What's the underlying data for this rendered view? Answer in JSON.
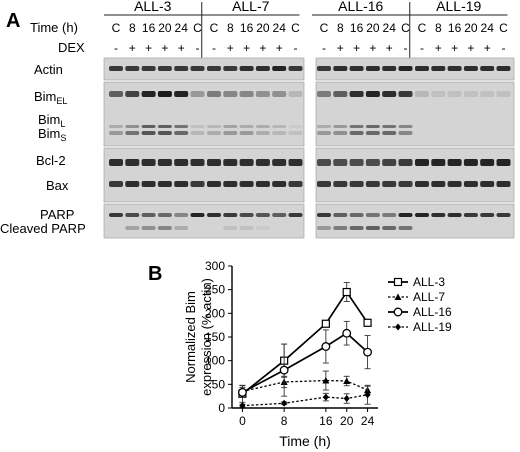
{
  "panel_a": {
    "letter": "A",
    "time_label": "Time (h)",
    "dex_label": "DEX",
    "groups_left": [
      "ALL-3",
      "ALL-7"
    ],
    "groups_right": [
      "ALL-16",
      "ALL-19"
    ],
    "time_points": [
      "C",
      "8",
      "16",
      "20",
      "24",
      "C"
    ],
    "dex_marks": [
      "-",
      "+",
      "+",
      "+",
      "+",
      "-"
    ],
    "row_labels": {
      "actin": "Actin",
      "bim_el_base": "Bim",
      "bim_el_sub": "EL",
      "bim_l_base": "Bim",
      "bim_l_sub": "L",
      "bim_s_base": "Bim",
      "bim_s_sub": "S",
      "bcl2": "Bcl-2",
      "bax": "Bax",
      "parp": "PARP",
      "cleaved_parp": "Cleaved PARP"
    }
  },
  "panel_b": {
    "letter": "B"
  },
  "chart_data": {
    "type": "line",
    "title": "",
    "xlabel": "Time (h)",
    "ylabel": "Normalized Bim expression (% actin)",
    "ylabel_lines": [
      "Normalized Bim",
      "expression (% actin)"
    ],
    "x": [
      0,
      8,
      16,
      20,
      24
    ],
    "xticks": [
      "0",
      "8",
      "16",
      "20",
      "24"
    ],
    "yticks": [
      "0",
      "50",
      "100",
      "150",
      "200",
      "250",
      "300"
    ],
    "xlim": [
      -2,
      26
    ],
    "ylim": [
      0,
      300
    ],
    "grid": false,
    "legend_position": "top-right",
    "series": [
      {
        "name": "ALL-3",
        "values": [
          30,
          100,
          178,
          245,
          180
        ],
        "errors": [
          18,
          35,
          5,
          20,
          5
        ],
        "style": "solid",
        "marker": "square-open"
      },
      {
        "name": "ALL-7",
        "values": [
          35,
          55,
          58,
          57,
          38
        ],
        "errors": [
          12,
          12,
          20,
          10,
          8
        ],
        "style": "dotted",
        "marker": "triangle-filled"
      },
      {
        "name": "ALL-16",
        "values": [
          33,
          80,
          130,
          158,
          118
        ],
        "errors": [
          10,
          55,
          35,
          25,
          35
        ],
        "style": "solid",
        "marker": "circle-open"
      },
      {
        "name": "ALL-19",
        "values": [
          5,
          10,
          23,
          20,
          28
        ],
        "errors": [
          3,
          3,
          8,
          10,
          20
        ],
        "style": "dotted",
        "marker": "diamond-filled"
      }
    ]
  }
}
